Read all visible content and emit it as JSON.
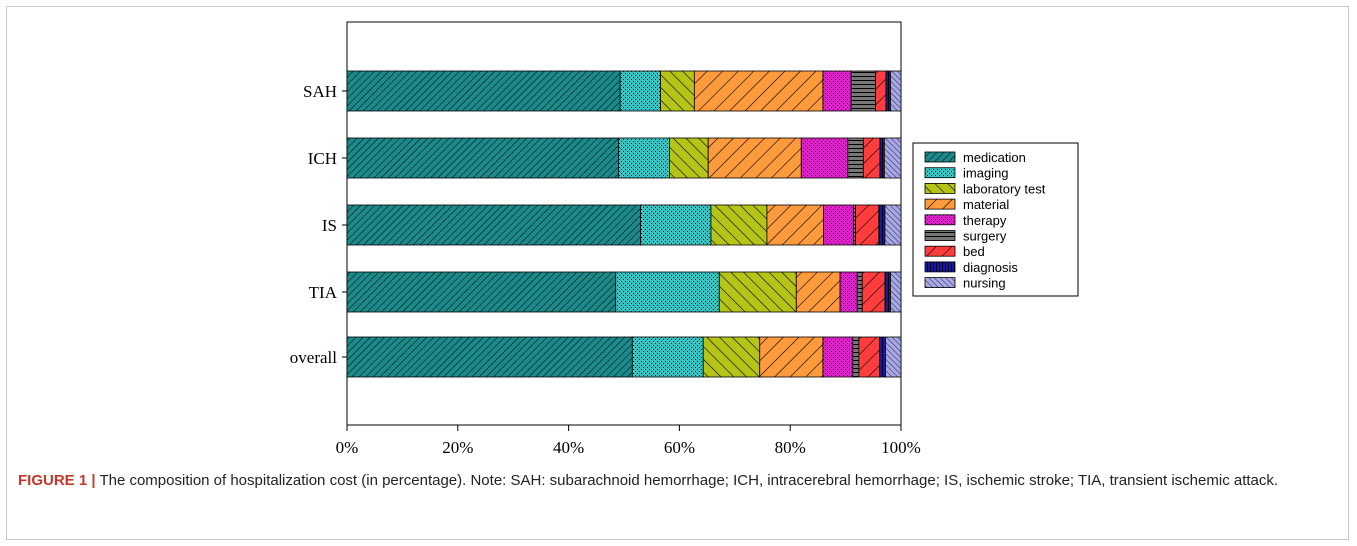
{
  "chart_data": {
    "type": "bar",
    "orientation": "horizontal",
    "stacked": true,
    "categories": [
      "SAH",
      "ICH",
      "IS",
      "TIA",
      "overall"
    ],
    "x_ticks": [
      "0%",
      "20%",
      "40%",
      "60%",
      "80%",
      "100%"
    ],
    "xlim": [
      0,
      100
    ],
    "grid": false,
    "legend_position": "right",
    "series": [
      {
        "name": "medication",
        "values": [
          49.3,
          49.0,
          53.0,
          48.5,
          51.5
        ],
        "color": "#1a8a8a",
        "pattern": "dense-diagonal"
      },
      {
        "name": "imaging",
        "values": [
          7.3,
          9.2,
          12.7,
          18.7,
          12.8
        ],
        "color": "#33c4c4",
        "pattern": "dots"
      },
      {
        "name": "laboratory test",
        "values": [
          6.1,
          7.0,
          10.1,
          13.9,
          10.2
        ],
        "color": "#b5c416",
        "pattern": "back-diagonal"
      },
      {
        "name": "material",
        "values": [
          23.2,
          16.8,
          10.2,
          7.9,
          11.4
        ],
        "color": "#ff9a3d",
        "pattern": "wide-diagonal"
      },
      {
        "name": "therapy",
        "values": [
          5.1,
          8.4,
          5.4,
          3.1,
          5.4
        ],
        "color": "#e020cc",
        "pattern": "dots"
      },
      {
        "name": "surgery",
        "values": [
          4.4,
          2.8,
          0.4,
          0.9,
          1.1
        ],
        "color": "#777777",
        "pattern": "horizontal"
      },
      {
        "name": "bed",
        "values": [
          1.9,
          3.0,
          4.2,
          4.1,
          3.7
        ],
        "color": "#ff3d3d",
        "pattern": "wide-diagonal"
      },
      {
        "name": "diagnosis",
        "values": [
          0.8,
          0.8,
          1.1,
          1.0,
          1.1
        ],
        "color": "#1515b0",
        "pattern": "vertical"
      },
      {
        "name": "nursing",
        "values": [
          1.9,
          3.0,
          2.9,
          1.9,
          2.8
        ],
        "color": "#a8a8e8",
        "pattern": "back-diagonal-fine"
      }
    ]
  },
  "caption": {
    "label": "FIGURE 1 |",
    "text": " The composition of hospitalization cost (in percentage). Note: SAH: subarachnoid hemorrhage; ICH, intracerebral hemorrhage; IS, ischemic stroke; TIA, transient ischemic attack."
  }
}
